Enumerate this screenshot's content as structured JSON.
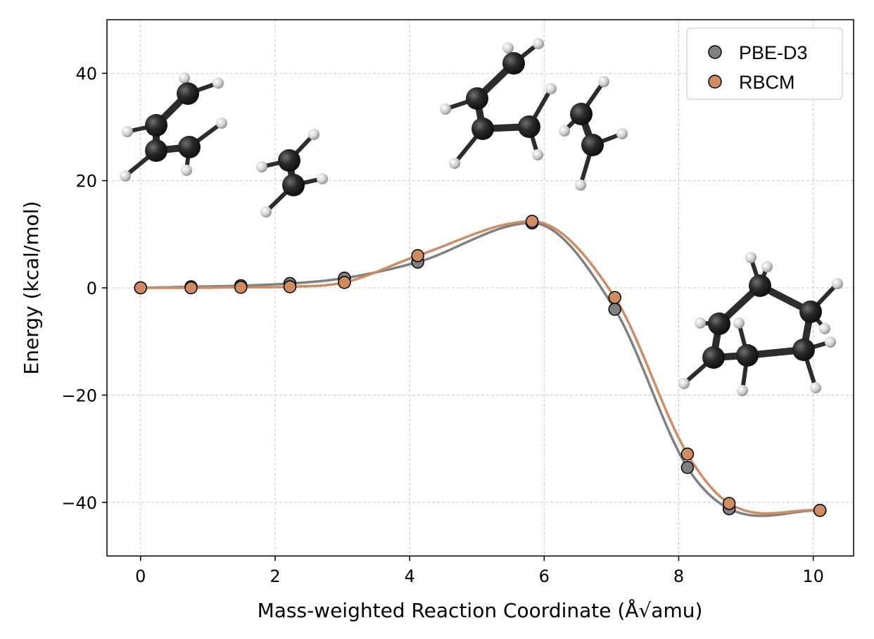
{
  "chart_data": {
    "type": "line",
    "title": "",
    "xlabel": "Mass-weighted Reaction Coordinate (Å√amu)",
    "ylabel": "Energy (kcal/mol)",
    "xlim": [
      -0.5,
      10.6
    ],
    "ylim": [
      -50,
      50
    ],
    "xticks": [
      0,
      2,
      4,
      6,
      8,
      10
    ],
    "yticks": [
      -40,
      -20,
      0,
      20,
      40
    ],
    "xtick_labels": [
      "0",
      "2",
      "4",
      "6",
      "8",
      "10"
    ],
    "ytick_labels": [
      "−40",
      "−20",
      "0",
      "20",
      "40"
    ],
    "grid": true,
    "legend_position": "top-right",
    "series": [
      {
        "name": "PBE-D3",
        "color": "#808080",
        "x": [
          0.0,
          0.75,
          1.49,
          2.22,
          3.03,
          4.12,
          5.82,
          7.05,
          8.13,
          8.75,
          10.1
        ],
        "y": [
          0.0,
          0.2,
          0.4,
          0.8,
          1.8,
          4.8,
          12.1,
          -4.0,
          -33.5,
          -41.2,
          -41.5
        ]
      },
      {
        "name": "RBCM",
        "color": "#d08c60",
        "x": [
          0.0,
          0.75,
          1.49,
          2.22,
          3.03,
          4.12,
          5.82,
          7.05,
          8.13,
          8.75,
          10.1
        ],
        "y": [
          0.0,
          0.0,
          0.1,
          0.2,
          1.0,
          6.0,
          12.4,
          -1.8,
          -31.0,
          -40.2,
          -41.5
        ]
      }
    ]
  }
}
